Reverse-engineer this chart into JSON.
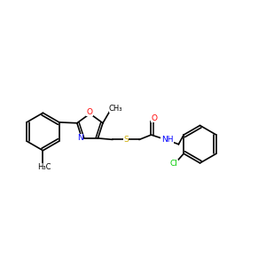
{
  "background_color": "#ffffff",
  "bond_color": "#000000",
  "bond_width": 1.2,
  "atom_colors": {
    "O": "#ff0000",
    "N": "#0000ff",
    "S": "#ccaa00",
    "Cl": "#00cc00",
    "C": "#000000",
    "H": "#000000"
  },
  "font_size": 6.5,
  "figure_size": [
    3.0,
    3.0
  ],
  "dpi": 100,
  "xlim": [
    0,
    10
  ],
  "ylim": [
    0,
    10
  ]
}
